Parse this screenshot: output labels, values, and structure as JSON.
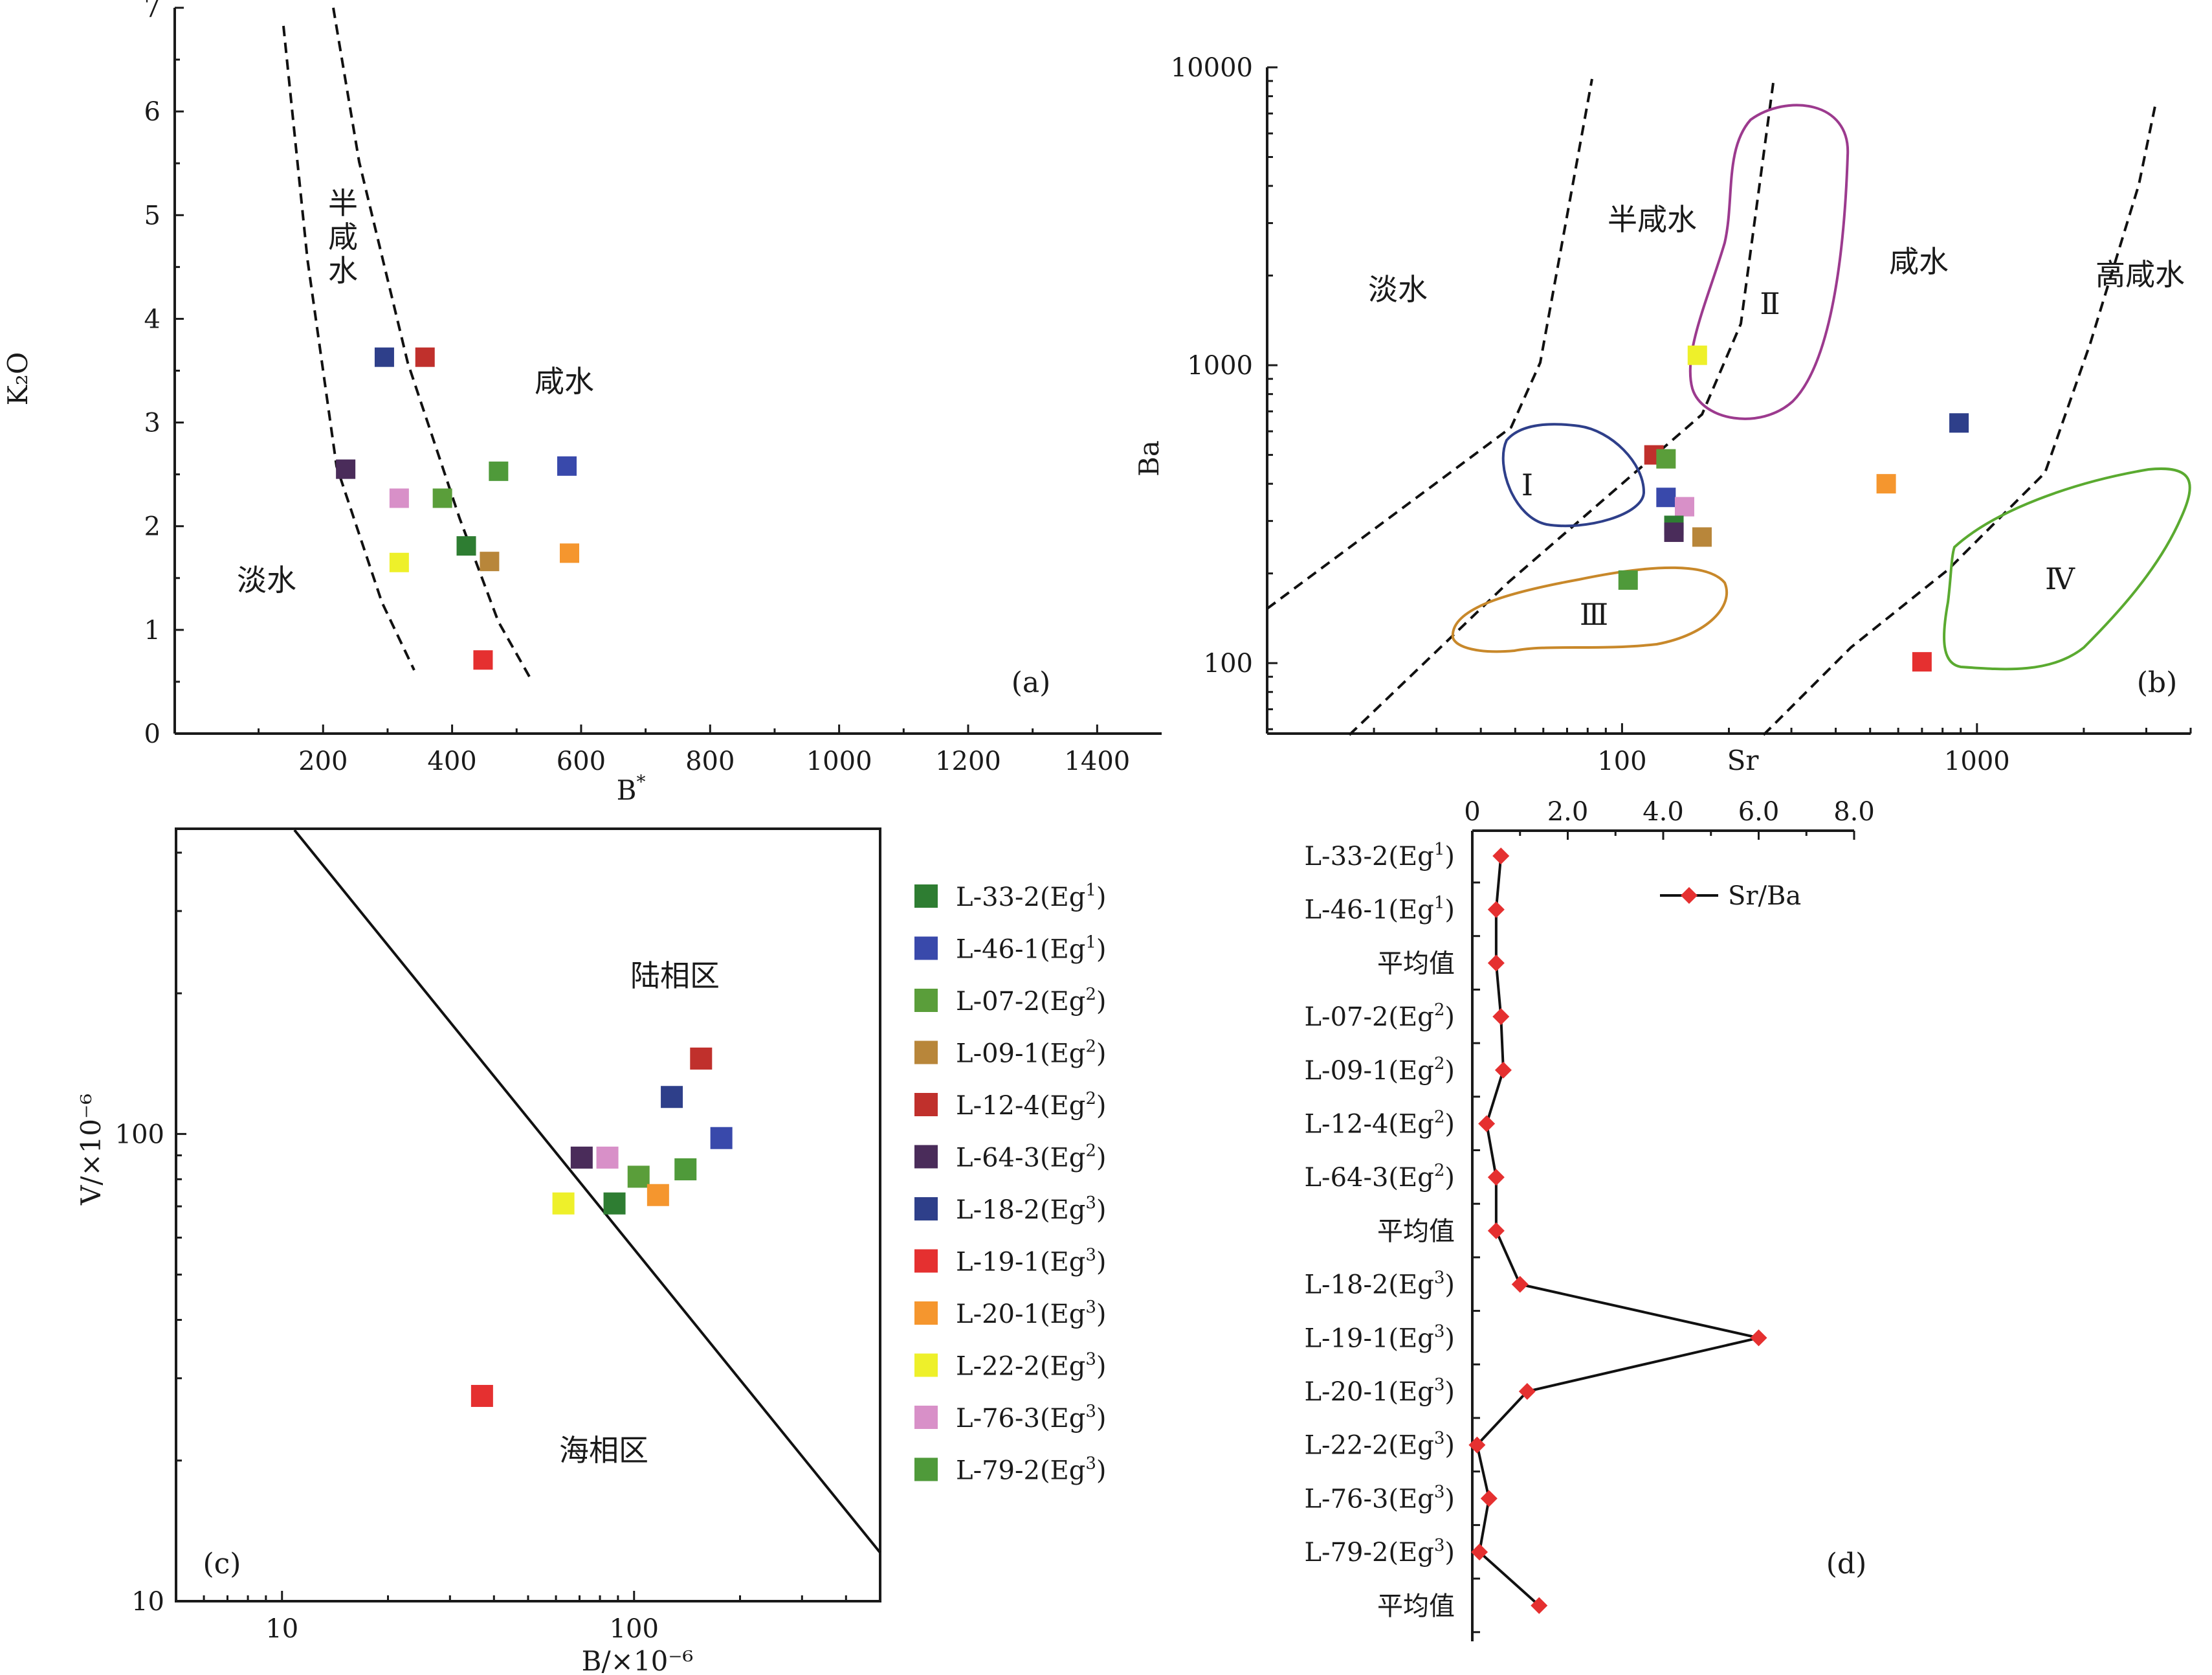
{
  "colors": {
    "L-33-2": "#2e7d32",
    "L-46-1": "#3949ab",
    "L-07-2": "#5a9e3a",
    "L-09-1": "#b8863a",
    "L-12-4": "#c0302c",
    "L-64-3": "#4a2c5a",
    "L-18-2": "#2e3f8a",
    "L-19-1": "#e53030",
    "L-20-1": "#f5962e",
    "L-22-2": "#eef02a",
    "L-76-3": "#d890c8",
    "L-79-2": "#4f9a3a",
    "zone_I": "#2e3f8a",
    "zone_II": "#9c3a8e",
    "zone_III": "#c8882a",
    "zone_IV": "#5aaa30",
    "line_d": "#111111",
    "marker_d": "#e53030"
  },
  "chart_data": [
    {
      "id": "a",
      "type": "scatter",
      "panel_label": "(a)",
      "xlabel": "B",
      "xlabel_sup": "*",
      "ylabel": "K₂O",
      "xlim": [
        -30,
        1500
      ],
      "ylim": [
        0,
        7
      ],
      "xticks": [
        "200",
        "400",
        "600",
        "800",
        "1000",
        "1200",
        "1400"
      ],
      "yticks": [
        "0",
        "1",
        "2",
        "3",
        "4",
        "5",
        "6",
        "7"
      ],
      "zones": [
        "淡水",
        "半咸水",
        "咸水"
      ],
      "points": [
        {
          "sample": "L-18-2",
          "x": 295,
          "y": 3.63
        },
        {
          "sample": "L-12-4",
          "x": 358,
          "y": 3.63
        },
        {
          "sample": "L-64-3",
          "x": 235,
          "y": 2.55
        },
        {
          "sample": "L-76-3",
          "x": 318,
          "y": 2.27
        },
        {
          "sample": "L-07-2",
          "x": 385,
          "y": 2.27
        },
        {
          "sample": "L-79-2",
          "x": 472,
          "y": 2.53
        },
        {
          "sample": "L-46-1",
          "x": 578,
          "y": 2.58
        },
        {
          "sample": "L-33-2",
          "x": 422,
          "y": 1.81
        },
        {
          "sample": "L-09-1",
          "x": 458,
          "y": 1.66
        },
        {
          "sample": "L-20-1",
          "x": 582,
          "y": 1.74
        },
        {
          "sample": "L-22-2",
          "x": 318,
          "y": 1.65
        },
        {
          "sample": "L-19-1",
          "x": 448,
          "y": 0.71
        }
      ]
    },
    {
      "id": "b",
      "type": "scatter",
      "panel_label": "(b)",
      "xlabel": "Sr",
      "ylabel": "Ba",
      "xscale": "log",
      "yscale": "log",
      "xlim": [
        10,
        4000
      ],
      "ylim": [
        58,
        10000
      ],
      "xticks": [
        "100",
        "1000"
      ],
      "yticks": [
        "100",
        "1000",
        "10000"
      ],
      "zones": [
        "淡水",
        "半咸水",
        "咸水",
        "高咸水"
      ],
      "fields": [
        "Ⅰ",
        "Ⅱ",
        "Ⅲ",
        "Ⅳ"
      ],
      "points": [
        {
          "sample": "L-22-2",
          "x": 163,
          "y": 1080
        },
        {
          "sample": "L-18-2",
          "x": 890,
          "y": 640
        },
        {
          "sample": "L-12-4",
          "x": 123,
          "y": 500
        },
        {
          "sample": "L-07-2",
          "x": 133,
          "y": 485
        },
        {
          "sample": "L-46-1",
          "x": 133,
          "y": 360
        },
        {
          "sample": "L-76-3",
          "x": 150,
          "y": 335
        },
        {
          "sample": "L-33-2",
          "x": 140,
          "y": 290
        },
        {
          "sample": "L-64-3",
          "x": 140,
          "y": 275
        },
        {
          "sample": "L-09-1",
          "x": 168,
          "y": 265
        },
        {
          "sample": "L-20-1",
          "x": 555,
          "y": 400
        },
        {
          "sample": "L-79-2",
          "x": 104,
          "y": 190
        },
        {
          "sample": "L-19-1",
          "x": 700,
          "y": 101
        }
      ]
    },
    {
      "id": "c",
      "type": "scatter",
      "panel_label": "(c)",
      "xlabel": "B/×10⁻⁶",
      "ylabel": "V/×10⁻⁶",
      "xscale": "log",
      "yscale": "log",
      "xlim": [
        5,
        500
      ],
      "ylim": [
        10,
        450
      ],
      "xticks": [
        "10",
        "100"
      ],
      "yticks": [
        "10",
        "100"
      ],
      "zones": [
        "陆相区",
        "海相区"
      ],
      "points": [
        {
          "sample": "L-12-4",
          "x": 155,
          "y": 145
        },
        {
          "sample": "L-18-2",
          "x": 128,
          "y": 120
        },
        {
          "sample": "L-46-1",
          "x": 177,
          "y": 98
        },
        {
          "sample": "L-64-3",
          "x": 71,
          "y": 89
        },
        {
          "sample": "L-76-3",
          "x": 84,
          "y": 89
        },
        {
          "sample": "L-79-2",
          "x": 140,
          "y": 84
        },
        {
          "sample": "L-07-2",
          "x": 103,
          "y": 81
        },
        {
          "sample": "L-20-1",
          "x": 117,
          "y": 74
        },
        {
          "sample": "L-33-2",
          "x": 88,
          "y": 71
        },
        {
          "sample": "L-22-2",
          "x": 63,
          "y": 71
        },
        {
          "sample": "L-19-1",
          "x": 37,
          "y": 27.5
        }
      ]
    },
    {
      "id": "d",
      "type": "line",
      "panel_label": "(d)",
      "series_name": "Sr/Ba",
      "xlim": [
        0,
        8
      ],
      "xticks": [
        "0",
        "2.0",
        "4.0",
        "6.0",
        "8.0"
      ],
      "categories": [
        {
          "base": "L-33-2(Eg",
          "sup": "1",
          "tail": ")"
        },
        {
          "base": "L-46-1(Eg",
          "sup": "1",
          "tail": ")"
        },
        {
          "base": "平均值",
          "sup": "",
          "tail": ""
        },
        {
          "base": "L-07-2(Eg",
          "sup": "2",
          "tail": ")"
        },
        {
          "base": "L-09-1(Eg",
          "sup": "2",
          "tail": ")"
        },
        {
          "base": "L-12-4(Eg",
          "sup": "2",
          "tail": ")"
        },
        {
          "base": "L-64-3(Eg",
          "sup": "2",
          "tail": ")"
        },
        {
          "base": "平均值",
          "sup": "",
          "tail": ""
        },
        {
          "base": "L-18-2(Eg",
          "sup": "3",
          "tail": ")"
        },
        {
          "base": "L-19-1(Eg",
          "sup": "3",
          "tail": ")"
        },
        {
          "base": "L-20-1(Eg",
          "sup": "3",
          "tail": ")"
        },
        {
          "base": "L-22-2(Eg",
          "sup": "3",
          "tail": ")"
        },
        {
          "base": "L-76-3(Eg",
          "sup": "3",
          "tail": ")"
        },
        {
          "base": "L-79-2(Eg",
          "sup": "3",
          "tail": ")"
        },
        {
          "base": "平均值",
          "sup": "",
          "tail": ""
        }
      ],
      "values": [
        0.6,
        0.5,
        0.5,
        0.6,
        0.65,
        0.3,
        0.5,
        0.5,
        1.0,
        6.0,
        1.15,
        0.1,
        0.35,
        0.15,
        1.4
      ]
    }
  ],
  "legend": [
    {
      "sample": "L-33-2",
      "base": "L-33-2(Eg",
      "sup": "1",
      "tail": ")"
    },
    {
      "sample": "L-46-1",
      "base": "L-46-1(Eg",
      "sup": "1",
      "tail": ")"
    },
    {
      "sample": "L-07-2",
      "base": "L-07-2(Eg",
      "sup": "2",
      "tail": ")"
    },
    {
      "sample": "L-09-1",
      "base": "L-09-1(Eg",
      "sup": "2",
      "tail": ")"
    },
    {
      "sample": "L-12-4",
      "base": "L-12-4(Eg",
      "sup": "2",
      "tail": ")"
    },
    {
      "sample": "L-64-3",
      "base": "L-64-3(Eg",
      "sup": "2",
      "tail": ")"
    },
    {
      "sample": "L-18-2",
      "base": "L-18-2(Eg",
      "sup": "3",
      "tail": ")"
    },
    {
      "sample": "L-19-1",
      "base": "L-19-1(Eg",
      "sup": "3",
      "tail": ")"
    },
    {
      "sample": "L-20-1",
      "base": "L-20-1(Eg",
      "sup": "3",
      "tail": ")"
    },
    {
      "sample": "L-22-2",
      "base": "L-22-2(Eg",
      "sup": "3",
      "tail": ")"
    },
    {
      "sample": "L-76-3",
      "base": "L-76-3(Eg",
      "sup": "3",
      "tail": ")"
    },
    {
      "sample": "L-79-2",
      "base": "L-79-2(Eg",
      "sup": "3",
      "tail": ")"
    }
  ]
}
